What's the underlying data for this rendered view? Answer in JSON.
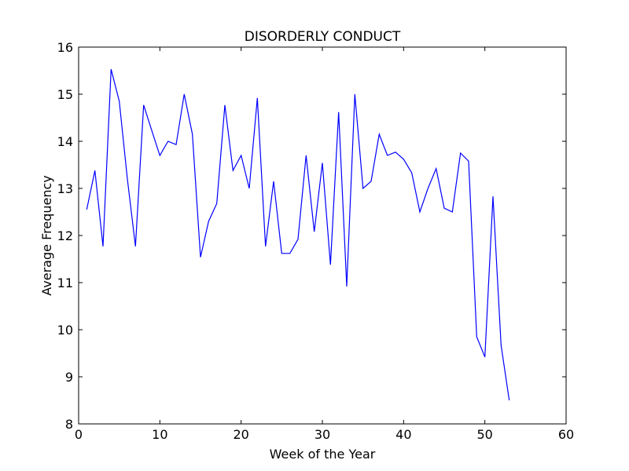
{
  "chart_data": {
    "type": "line",
    "title": "DISORDERLY CONDUCT",
    "xlabel": "Week of the Year",
    "ylabel": "Average Frequency",
    "xlim": [
      0,
      60
    ],
    "ylim": [
      8,
      16
    ],
    "xticks": [
      0,
      10,
      20,
      30,
      40,
      50,
      60
    ],
    "yticks": [
      8,
      9,
      10,
      11,
      12,
      13,
      14,
      15,
      16
    ],
    "grid": false,
    "series": [
      {
        "color": "#0000ff",
        "x": [
          1,
          2,
          3,
          4,
          5,
          6,
          7,
          8,
          9,
          10,
          11,
          12,
          13,
          14,
          15,
          16,
          17,
          18,
          19,
          20,
          21,
          22,
          23,
          24,
          25,
          26,
          27,
          28,
          29,
          30,
          31,
          32,
          33,
          34,
          35,
          36,
          37,
          38,
          39,
          40,
          41,
          42,
          43,
          44,
          45,
          46,
          47,
          48,
          49,
          50,
          51,
          52,
          53
        ],
        "y": [
          12.55,
          13.38,
          11.77,
          15.53,
          14.85,
          13.2,
          11.77,
          14.77,
          14.23,
          13.7,
          14.0,
          13.93,
          15.0,
          14.15,
          11.54,
          12.3,
          12.68,
          14.77,
          13.38,
          13.7,
          13.0,
          14.92,
          11.77,
          13.15,
          11.62,
          11.62,
          11.92,
          13.7,
          12.08,
          13.54,
          11.38,
          14.62,
          10.92,
          15.0,
          13.0,
          13.15,
          14.15,
          13.7,
          13.77,
          13.62,
          13.33,
          12.5,
          13.0,
          13.42,
          12.58,
          12.5,
          13.75,
          13.58,
          9.85,
          9.42,
          12.83,
          9.67,
          8.5
        ]
      }
    ]
  }
}
